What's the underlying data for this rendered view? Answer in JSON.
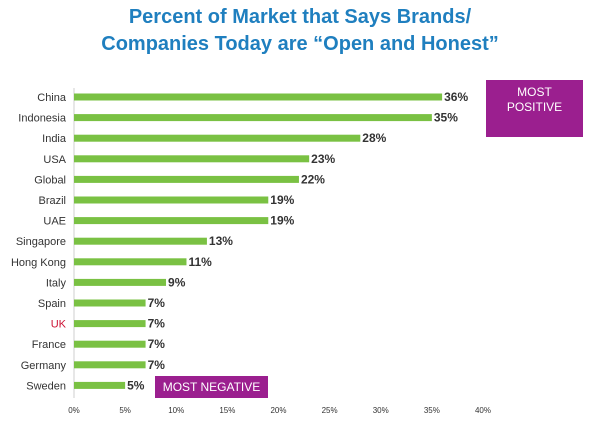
{
  "chart_data": {
    "type": "bar",
    "orientation": "horizontal",
    "title_line1": "Percent of Market that Says Brands/",
    "title_line2": "Companies Today are “Open and Honest”",
    "categories": [
      "China",
      "Indonesia",
      "India",
      "USA",
      "Global",
      "Brazil",
      "UAE",
      "Singapore",
      "Hong Kong",
      "Italy",
      "Spain",
      "UK",
      "France",
      "Germany",
      "Sweden"
    ],
    "values": [
      36,
      35,
      28,
      23,
      22,
      19,
      19,
      13,
      11,
      9,
      7,
      7,
      7,
      7,
      5
    ],
    "value_labels": [
      "36%",
      "35%",
      "28%",
      "23%",
      "22%",
      "19%",
      "19%",
      "13%",
      "11%",
      "9%",
      "7%",
      "7%",
      "7%",
      "7%",
      "5%"
    ],
    "xlim": [
      0,
      40
    ],
    "xticks": [
      "0%",
      "5%",
      "10%",
      "15%",
      "20%",
      "25%",
      "30%",
      "35%",
      "40%"
    ],
    "highlight_category": "UK",
    "grid": false,
    "colors": {
      "bar": "#7ac143",
      "title": "#1f7fbf",
      "highlight_text": "#cc1133",
      "callout": "#9b1f8f"
    },
    "annotations": {
      "most_positive_line1": "MOST",
      "most_positive_line2": "POSITIVE",
      "most_negative": "MOST NEGATIVE"
    }
  }
}
